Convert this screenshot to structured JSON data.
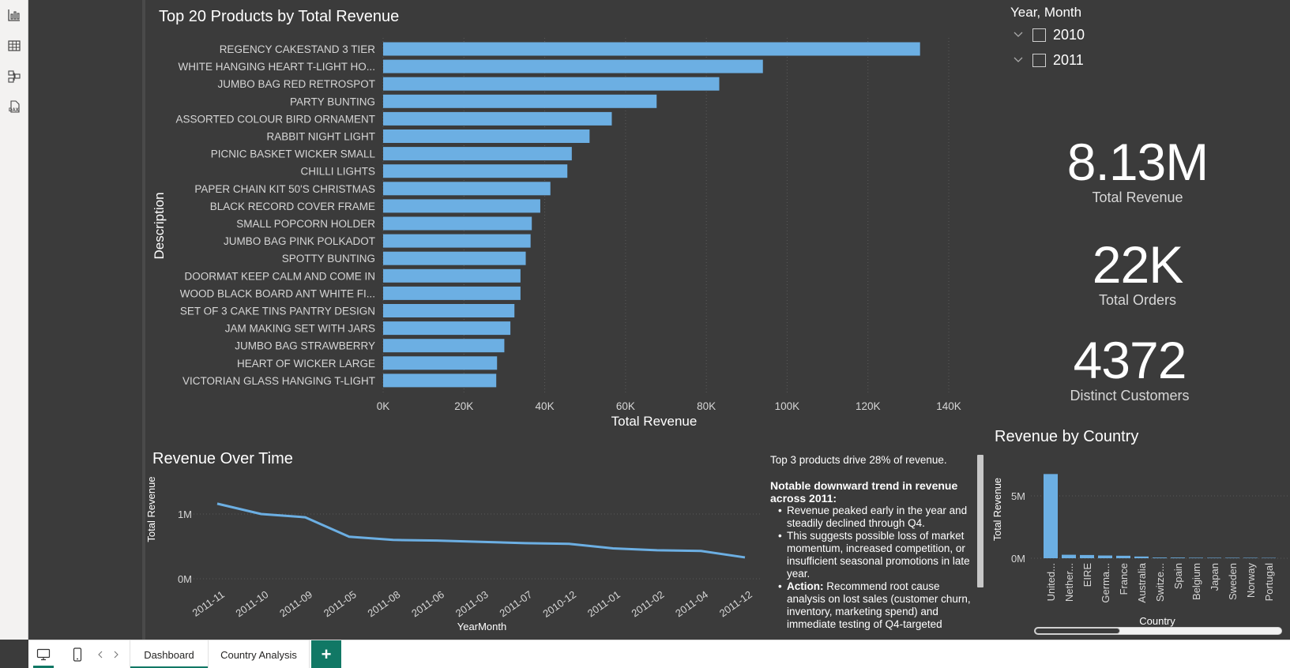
{
  "rail": {
    "icons": [
      "report-view-icon",
      "table-view-icon",
      "model-view-icon",
      "dax-query-view-icon"
    ]
  },
  "bar_chart_title": "Top 20 Products by Total Revenue",
  "line_chart_title": "Revenue Over Time",
  "country_chart_title": "Revenue by Country",
  "slicer": {
    "title": "Year, Month",
    "items": [
      "2010",
      "2011"
    ]
  },
  "kpis": {
    "revenue": {
      "value": "8.13M",
      "label": "Total Revenue"
    },
    "orders": {
      "value": "22K",
      "label": "Total Orders"
    },
    "customers": {
      "value": "4372",
      "label": "Distinct Customers"
    }
  },
  "narrative": {
    "intro": "Top 3 products drive 28% of revenue.",
    "heading": "Notable downward trend in revenue across 2011:",
    "bullets": [
      "Revenue peaked early in the year and steadily declined through Q4.",
      "This suggests possible loss of market momentum, increased competition, or insufficient seasonal promotions in late year."
    ],
    "action_label": "Action:",
    "action_text": " Recommend root cause analysis on lost sales (customer churn, inventory, marketing spend) and immediate testing of Q4-targeted"
  },
  "tabs": {
    "dashboard": "Dashboard",
    "country": "Country Analysis",
    "add": "+"
  },
  "colors": {
    "bar": "#6cafe3",
    "background": "#3b3b3b",
    "accent": "#117865"
  },
  "chart_data": [
    {
      "type": "bar",
      "orientation": "horizontal",
      "title": "Top 20 Products by Total Revenue",
      "xlabel": "Total Revenue",
      "ylabel": "Description",
      "categories": [
        "REGENCY CAKESTAND 3 TIER",
        "WHITE HANGING HEART T-LIGHT HO...",
        "JUMBO BAG RED RETROSPOT",
        "PARTY BUNTING",
        "ASSORTED COLOUR BIRD ORNAMENT",
        "RABBIT NIGHT LIGHT",
        "PICNIC BASKET WICKER SMALL",
        "CHILLI LIGHTS",
        "PAPER CHAIN KIT 50'S CHRISTMAS",
        "BLACK RECORD COVER FRAME",
        "SMALL POPCORN HOLDER",
        "JUMBO BAG PINK POLKADOT",
        "SPOTTY BUNTING",
        "DOORMAT KEEP CALM AND COME IN",
        "WOOD BLACK BOARD ANT WHITE FI...",
        "SET OF 3 CAKE TINS PANTRY DESIGN",
        "JAM MAKING SET WITH JARS",
        "JUMBO BAG STRAWBERRY",
        "HEART OF WICKER LARGE",
        "VICTORIAN GLASS HANGING T-LIGHT"
      ],
      "values": [
        132900,
        94000,
        83200,
        67700,
        56600,
        51100,
        46700,
        45600,
        41400,
        38900,
        36800,
        36500,
        35300,
        34000,
        34000,
        32500,
        31500,
        30000,
        28200,
        28000
      ],
      "xlim": [
        0,
        140000
      ],
      "xticks": [
        "0K",
        "20K",
        "40K",
        "60K",
        "80K",
        "100K",
        "120K",
        "140K"
      ],
      "grid": true
    },
    {
      "type": "line",
      "title": "Revenue Over Time",
      "xlabel": "YearMonth",
      "ylabel": "Total Revenue",
      "x": [
        "2011-11",
        "2011-10",
        "2011-09",
        "2011-05",
        "2011-08",
        "2011-06",
        "2011-03",
        "2011-07",
        "2010-12",
        "2011-01",
        "2011-02",
        "2011-04",
        "2011-12"
      ],
      "values": [
        1160000,
        1000000,
        950000,
        650000,
        600000,
        590000,
        570000,
        550000,
        540000,
        470000,
        440000,
        430000,
        330000
      ],
      "ylim": [
        0,
        1500000
      ],
      "yticks": [
        "0M",
        "1M"
      ],
      "grid": true
    },
    {
      "type": "bar",
      "orientation": "vertical",
      "title": "Revenue by Country",
      "xlabel": "Country",
      "ylabel": "Total Revenue",
      "categories": [
        "United...",
        "Nether...",
        "EIRE",
        "Germa...",
        "France",
        "Australia",
        "Switze...",
        "Spain",
        "Belgium",
        "Japan",
        "Sweden",
        "Norway",
        "Portugal"
      ],
      "values": [
        6750000,
        280000,
        260000,
        220000,
        200000,
        140000,
        57000,
        55000,
        41000,
        37000,
        37000,
        35000,
        29000
      ],
      "ylim": [
        0,
        7500000
      ],
      "yticks": [
        "0M",
        "5M"
      ],
      "grid": true
    }
  ]
}
